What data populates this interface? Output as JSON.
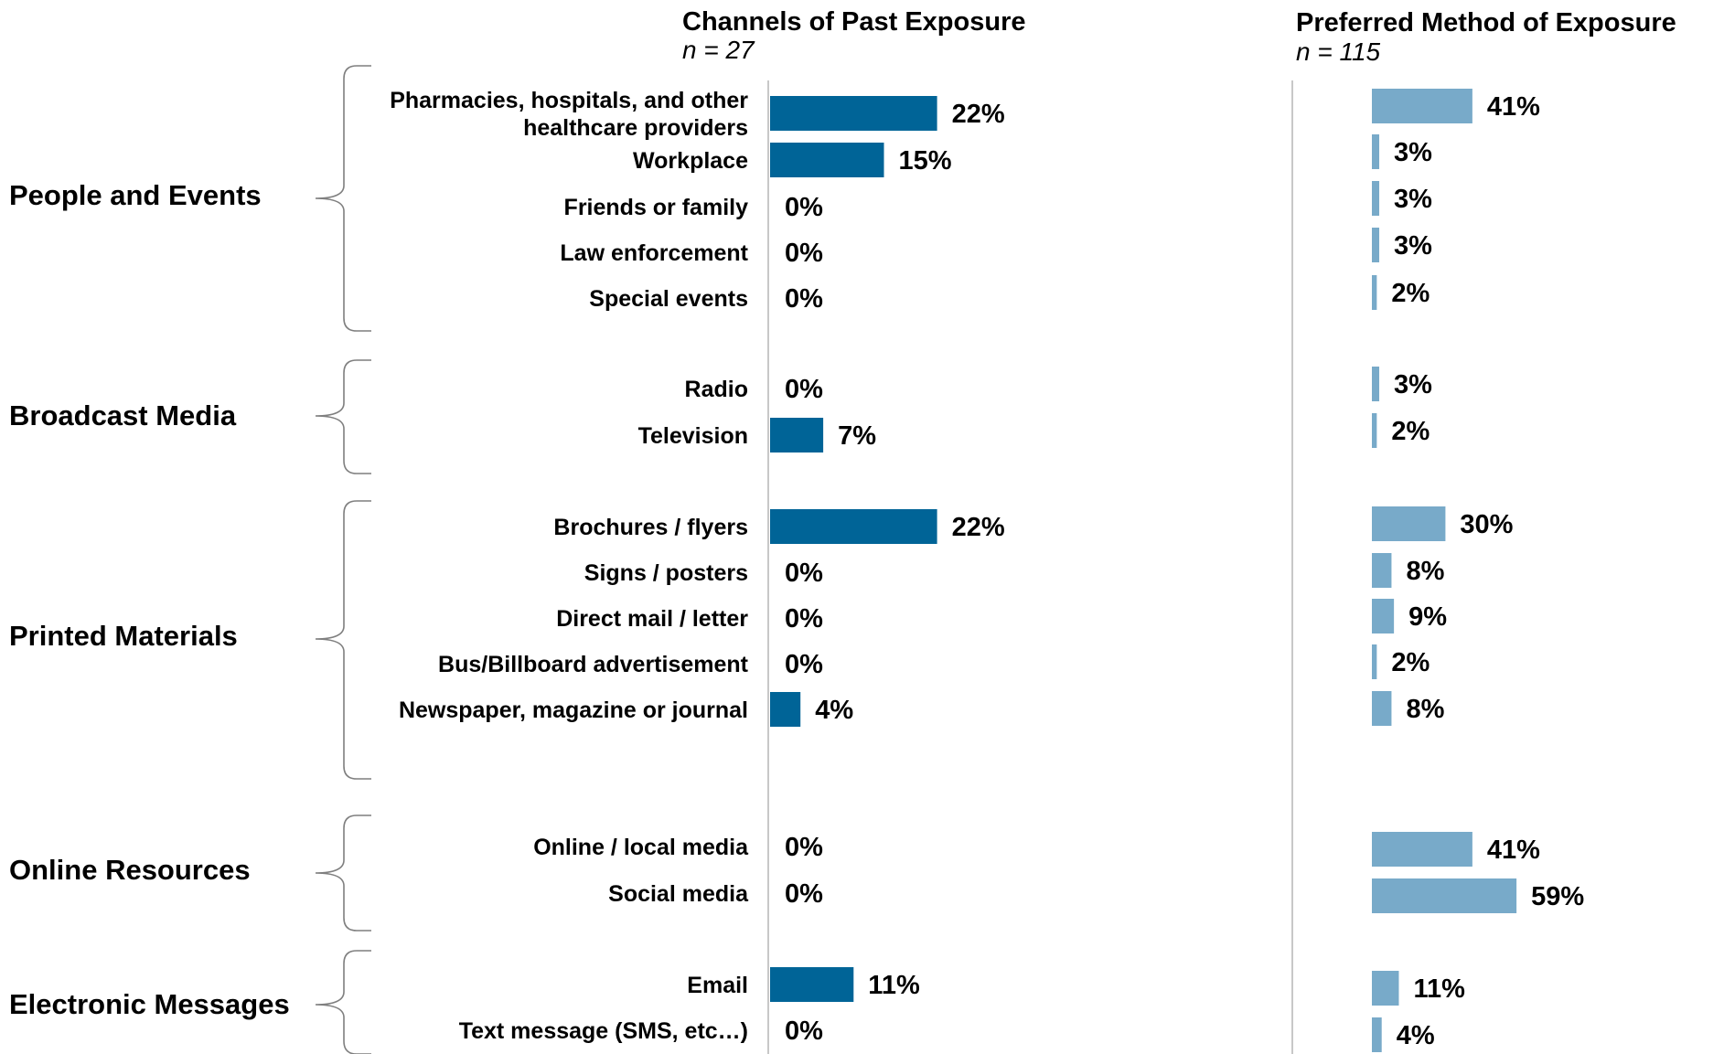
{
  "chart_data": [
    {
      "type": "bar",
      "orientation": "horizontal",
      "title": "Channels of Past Exposure",
      "subtitle": "n = 27",
      "color": "#006497",
      "value_format": "percent",
      "xlim": [
        0,
        59
      ],
      "grid": false,
      "groups": [
        {
          "name": "People and Events",
          "categories": [
            "Pharmacies, hospitals, and other healthcare providers",
            "Workplace",
            "Friends or family",
            "Law enforcement",
            "Special events"
          ],
          "values": [
            22,
            15,
            0,
            0,
            0
          ]
        },
        {
          "name": "Broadcast Media",
          "categories": [
            "Radio",
            "Television"
          ],
          "values": [
            0,
            7
          ]
        },
        {
          "name": "Printed Materials",
          "categories": [
            "Brochures / flyers",
            "Signs / posters",
            "Direct mail / letter",
            "Bus/Billboard advertisement",
            "Newspaper, magazine or journal"
          ],
          "values": [
            22,
            0,
            0,
            0,
            4
          ]
        },
        {
          "name": "Online Resources",
          "categories": [
            "Online / local media",
            "Social media"
          ],
          "values": [
            0,
            0
          ]
        },
        {
          "name": "Electronic Messages",
          "categories": [
            "Email",
            "Text message (SMS, etc…)"
          ],
          "values": [
            11,
            0
          ]
        }
      ]
    },
    {
      "type": "bar",
      "orientation": "horizontal",
      "title": "Preferred Method of Exposure",
      "subtitle": "n = 115",
      "color": "#78AAC9",
      "value_format": "percent",
      "xlim": [
        0,
        59
      ],
      "grid": false,
      "groups": [
        {
          "name": "People and Events",
          "values": [
            41,
            3,
            3,
            3,
            2
          ]
        },
        {
          "name": "Broadcast Media",
          "values": [
            3,
            2
          ]
        },
        {
          "name": "Printed Materials",
          "values": [
            30,
            8,
            9,
            2,
            8
          ]
        },
        {
          "name": "Online Resources",
          "values": [
            41,
            59
          ]
        },
        {
          "name": "Electronic Messages",
          "values": [
            11,
            4
          ]
        }
      ]
    }
  ]
}
